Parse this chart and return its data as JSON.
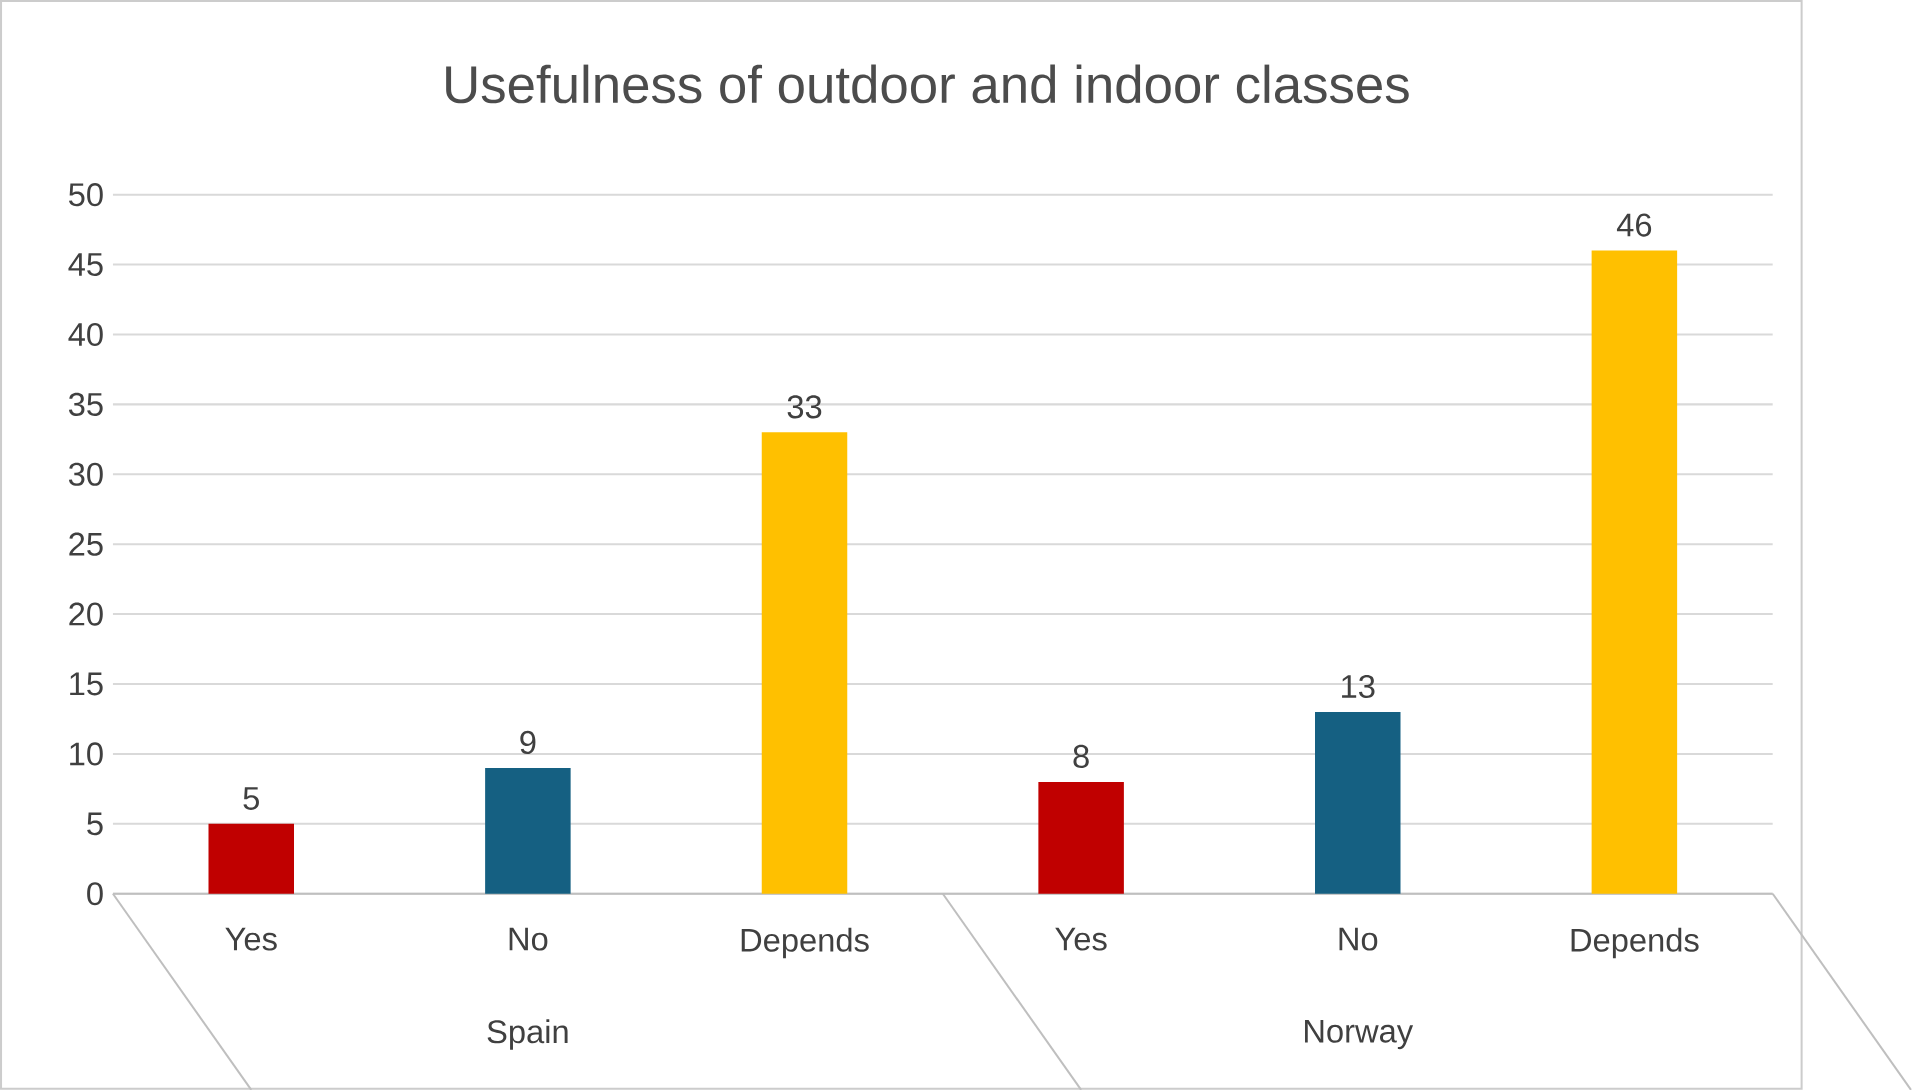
{
  "chart_data": {
    "type": "bar",
    "title": "Usefulness of outdoor and indoor classes",
    "categories": [
      "Yes",
      "No",
      "Depends",
      "Yes",
      "No",
      "Depends"
    ],
    "values": [
      5,
      9,
      33,
      8,
      13,
      46
    ],
    "colors": [
      "#c00000",
      "#156082",
      "#ffc000",
      "#c00000",
      "#156082",
      "#ffc000"
    ],
    "annotations": [
      "Spain",
      "Norway"
    ],
    "ylim": [
      0,
      50
    ],
    "yticks": [
      0,
      5,
      10,
      15,
      20,
      25,
      30,
      35,
      40,
      45,
      50
    ],
    "grid": "y",
    "data_labels": true
  }
}
